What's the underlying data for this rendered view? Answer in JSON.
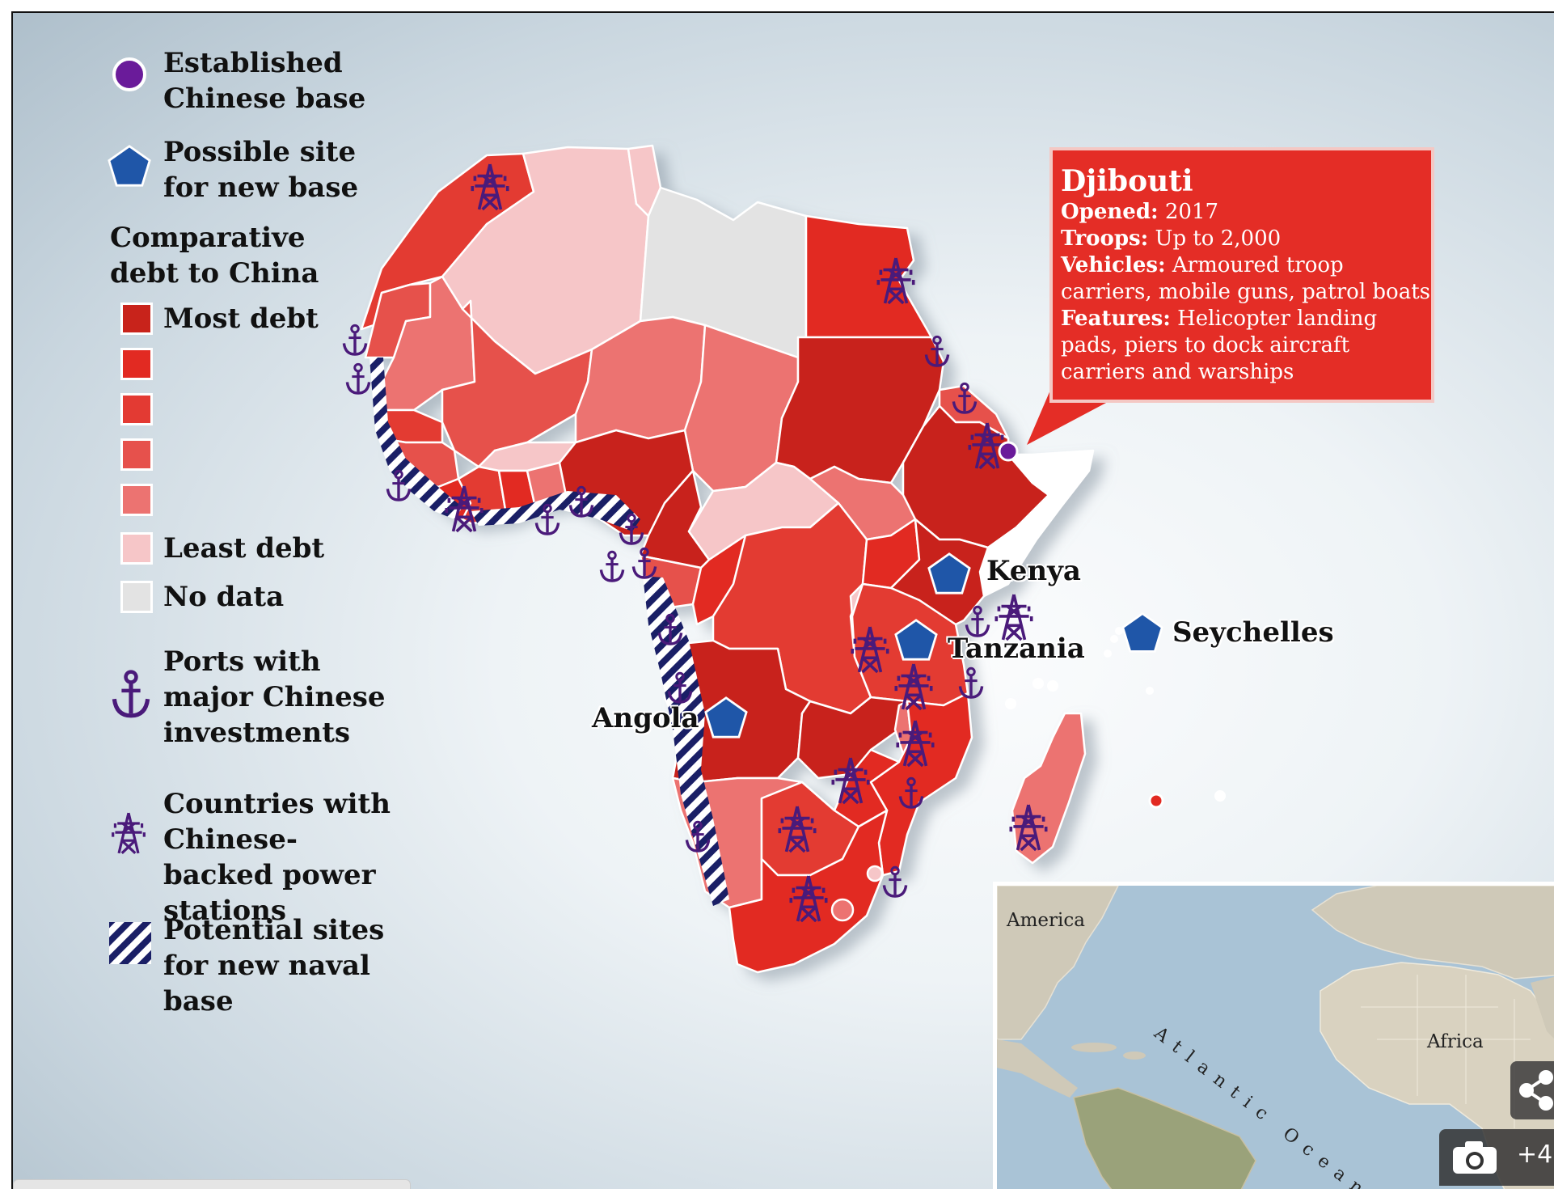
{
  "legend": {
    "established_base": "Established Chinese base",
    "possible_site": "Possible site for new base",
    "debt_title": "Comparative debt to China",
    "most_debt": "Most debt",
    "least_debt": "Least debt",
    "no_data": "No data",
    "ports": "Ports with major Chinese investments",
    "power": "Countries with Chinese-backed power stations",
    "naval": "Potential sites for new naval base"
  },
  "debt_scale_colors": [
    "#c8231b",
    "#e22a22",
    "#e33a33",
    "#e6514c",
    "#ec7371",
    "#f6c6c8",
    "#e3e3e3"
  ],
  "colors": {
    "established_base": "#6a1b9a",
    "possible_site": "#1f56a8",
    "icon_purple": "#4a1a7a",
    "hatch": "#1a1f66",
    "callout_bg": "#e42d26"
  },
  "callout": {
    "title": "Djibouti",
    "rows": [
      {
        "label": "Opened:",
        "value": "2017"
      },
      {
        "label": "Troops:",
        "value": "Up to 2,000"
      },
      {
        "label": "Vehicles:",
        "value": "Armoured troop carriers, mobile guns, patrol boats"
      },
      {
        "label": "Features:",
        "value": "Helicopter landing pads, piers to dock aircraft carriers and warships"
      }
    ]
  },
  "places": {
    "kenya": "Kenya",
    "tanzania": "Tanzania",
    "seychelles": "Seychelles",
    "angola": "Angola"
  },
  "inset": {
    "america": "America",
    "ocean": "Atlantic Ocean",
    "africa": "Africa"
  },
  "ui": {
    "photo_count": "+4",
    "share_icon": "share-icon",
    "camera_icon": "camera-icon"
  }
}
